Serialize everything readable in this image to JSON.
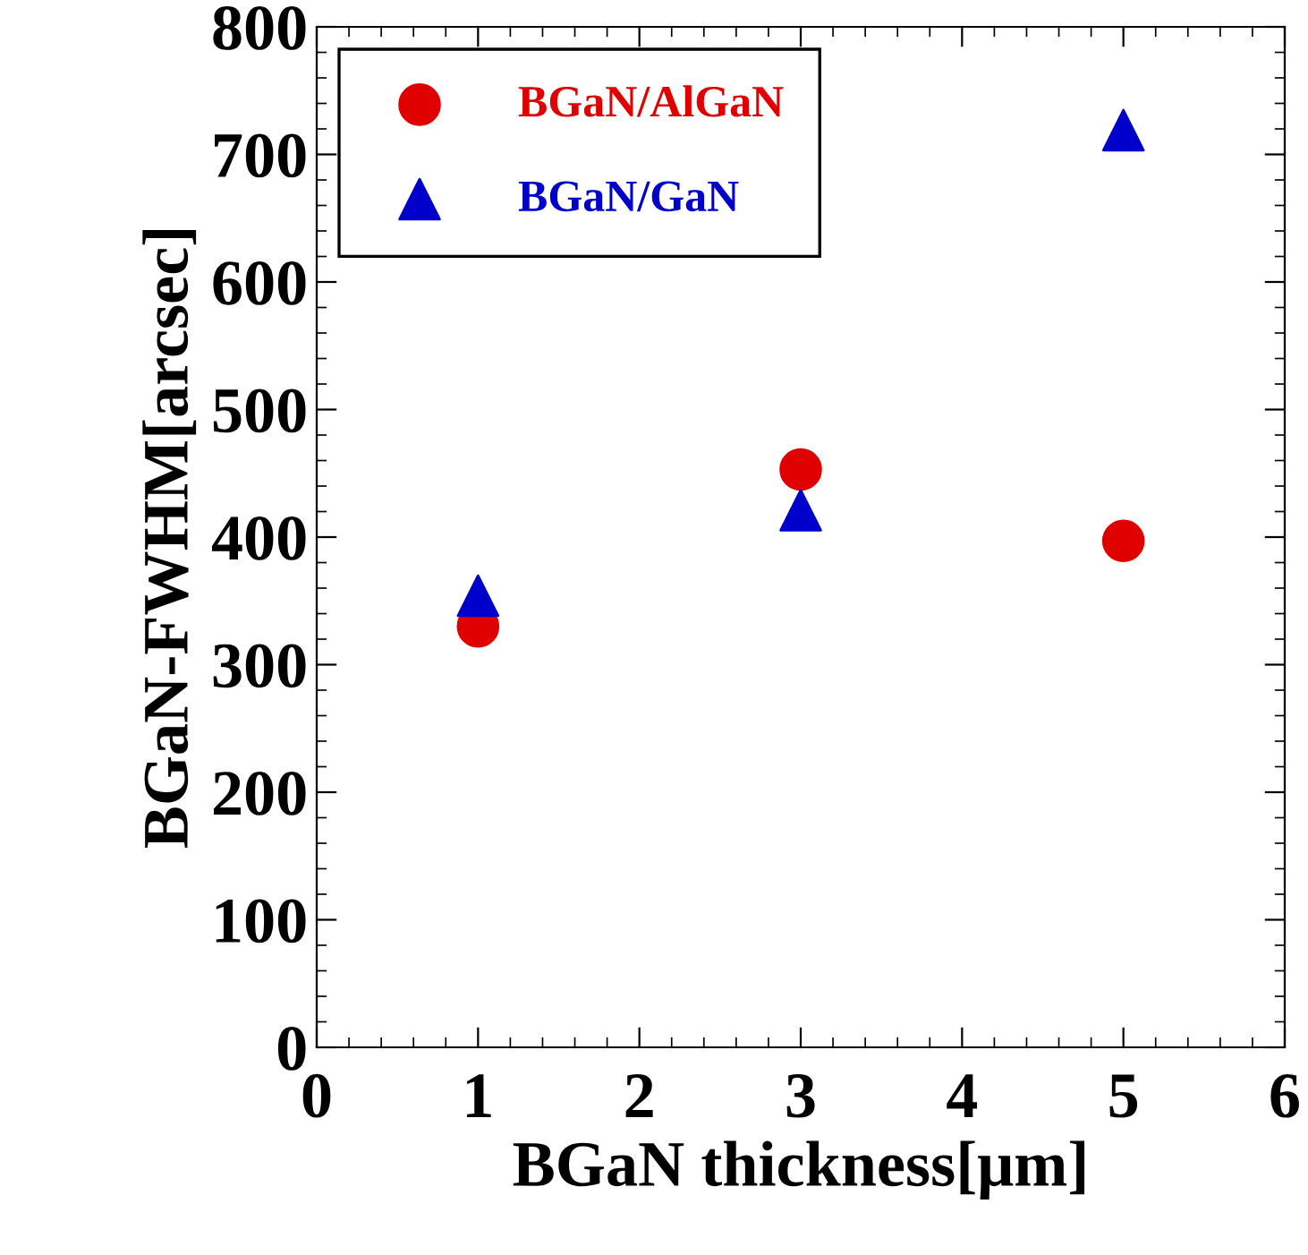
{
  "chart_data": {
    "type": "scatter",
    "xlabel": "BGaN thickness[μm]",
    "ylabel": "BGaN-FWHM[arcsec]",
    "series": [
      {
        "name": "BGaN/AlGaN",
        "color": "#e00000",
        "marker": "circle",
        "x": [
          1,
          3,
          5
        ],
        "values": [
          330,
          453,
          397
        ]
      },
      {
        "name": "BGaN/GaN",
        "color": "#0000cc",
        "marker": "triangle",
        "x": [
          1,
          3,
          5
        ],
        "values": [
          354,
          421,
          719
        ]
      }
    ],
    "xlim": [
      0,
      6
    ],
    "xticks": [
      0,
      1,
      2,
      3,
      4,
      5,
      6
    ],
    "ylim": [
      0,
      800
    ],
    "yticks": [
      0,
      100,
      200,
      300,
      400,
      500,
      600,
      700,
      800
    ],
    "grid": false,
    "legend": "top left"
  }
}
